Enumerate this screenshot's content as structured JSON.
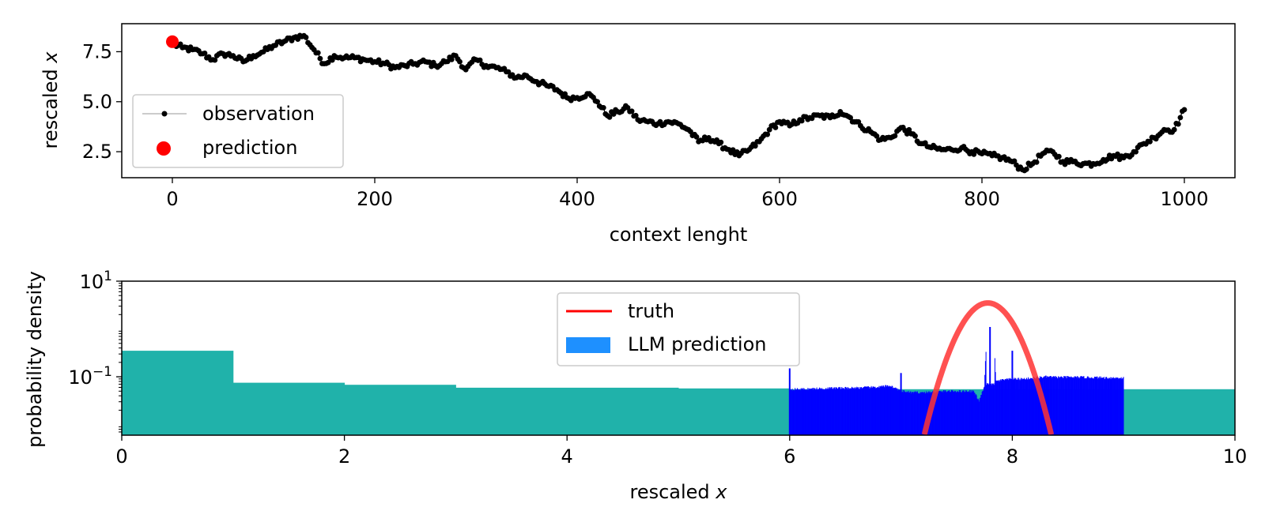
{
  "chart_data": [
    {
      "type": "line",
      "xlabel": "context lenght",
      "ylabel_main": "rescaled ",
      "ylabel_var": "x",
      "xlim": [
        -50,
        1050
      ],
      "ylim": [
        1.2,
        8.9
      ],
      "xticks": [
        0,
        200,
        400,
        600,
        800,
        1000
      ],
      "yticks": [
        2.5,
        5.0,
        7.5
      ],
      "xtick_labels": [
        "0",
        "200",
        "400",
        "600",
        "800",
        "1000"
      ],
      "ytick_labels": [
        "2.5",
        "5.0",
        "7.5"
      ],
      "legend_position": "lower-left",
      "legend": [
        {
          "label": "observation",
          "color": "#000000",
          "marker": "dot-line"
        },
        {
          "label": "prediction",
          "color": "#ff0000",
          "marker": "circle"
        }
      ],
      "series": [
        {
          "name": "observation",
          "color": "#000000",
          "x": [
            0,
            10,
            20,
            30,
            40,
            50,
            60,
            70,
            80,
            90,
            100,
            110,
            120,
            130,
            140,
            150,
            160,
            170,
            180,
            190,
            200,
            210,
            220,
            230,
            240,
            250,
            260,
            270,
            280,
            290,
            300,
            310,
            320,
            330,
            340,
            350,
            360,
            370,
            380,
            390,
            400,
            410,
            420,
            430,
            440,
            450,
            460,
            470,
            480,
            490,
            500,
            510,
            520,
            530,
            540,
            550,
            560,
            570,
            580,
            590,
            600,
            610,
            620,
            630,
            640,
            650,
            660,
            670,
            680,
            690,
            700,
            710,
            720,
            730,
            740,
            750,
            760,
            770,
            780,
            790,
            800,
            810,
            820,
            830,
            840,
            850,
            860,
            870,
            880,
            890,
            900,
            910,
            920,
            930,
            940,
            950,
            960,
            970,
            980,
            990,
            1000
          ],
          "y": [
            7.9,
            7.7,
            7.6,
            7.4,
            7.1,
            7.4,
            7.3,
            7.0,
            7.3,
            7.5,
            7.8,
            8.0,
            8.2,
            8.3,
            7.6,
            6.9,
            7.3,
            7.2,
            7.2,
            7.1,
            7.0,
            6.9,
            6.7,
            6.8,
            6.9,
            7.0,
            6.8,
            7.0,
            7.3,
            6.6,
            7.1,
            6.8,
            6.7,
            6.5,
            6.2,
            6.3,
            6.0,
            5.8,
            5.6,
            5.2,
            5.2,
            5.4,
            5.0,
            4.3,
            4.5,
            4.7,
            4.1,
            4.0,
            3.9,
            4.0,
            3.9,
            3.6,
            3.0,
            3.2,
            2.9,
            2.6,
            2.3,
            2.6,
            3.0,
            3.6,
            4.0,
            3.8,
            4.1,
            4.2,
            4.3,
            4.2,
            4.5,
            4.2,
            3.8,
            3.5,
            3.1,
            3.2,
            3.7,
            3.4,
            2.9,
            2.7,
            2.6,
            2.6,
            2.7,
            2.5,
            2.4,
            2.3,
            2.2,
            2.0,
            1.6,
            1.9,
            2.4,
            2.5,
            2.0,
            2.0,
            1.9,
            1.9,
            2.1,
            2.3,
            2.2,
            2.5,
            2.9,
            3.2,
            3.6,
            3.6,
            4.6
          ]
        },
        {
          "name": "prediction",
          "color": "#ff0000",
          "x": [
            0
          ],
          "y": [
            8.0
          ]
        }
      ]
    },
    {
      "type": "bar",
      "xlabel": "rescaled ",
      "xlabel_var": "x",
      "ylabel": "probability density",
      "yscale": "log",
      "xlim": [
        0,
        10
      ],
      "ylim": [
        0.006,
        10
      ],
      "xticks": [
        0,
        2,
        4,
        6,
        8,
        10
      ],
      "xtick_labels": [
        "0",
        "2",
        "4",
        "6",
        "8",
        "10"
      ],
      "yticks": [
        0.1,
        10
      ],
      "ytick_base": "10",
      "ytick_exponents": [
        "−1",
        "1"
      ],
      "legend_position": "upper-center",
      "legend": [
        {
          "label": "truth",
          "color": "#ff0000",
          "marker": "line"
        },
        {
          "label": "LLM prediction",
          "color": "#1e90ff",
          "marker": "patch"
        }
      ],
      "coarse_bins": {
        "color": "#20b2aa",
        "edges": [
          0,
          1,
          2,
          3,
          5,
          6,
          9,
          10
        ],
        "values": [
          0.35,
          0.075,
          0.068,
          0.059,
          0.057,
          0.055,
          0.055
        ]
      },
      "fine_bins": {
        "color": "#0000ff",
        "x_start": 6.0,
        "x_end": 9.0,
        "x": [
          6.0,
          6.1,
          6.2,
          6.3,
          6.4,
          6.5,
          6.6,
          6.7,
          6.8,
          6.9,
          7.0,
          7.1,
          7.2,
          7.3,
          7.4,
          7.5,
          7.6,
          7.65,
          7.7,
          7.75,
          7.8,
          7.85,
          7.9,
          8.0,
          8.1,
          8.2,
          8.3,
          8.4,
          8.5,
          8.6,
          8.7,
          8.8,
          8.9
        ],
        "values": [
          0.055,
          0.055,
          0.056,
          0.057,
          0.058,
          0.058,
          0.059,
          0.06,
          0.061,
          0.065,
          0.05,
          0.047,
          0.047,
          0.048,
          0.05,
          0.05,
          0.05,
          0.05,
          0.03,
          0.06,
          1.1,
          0.08,
          0.085,
          0.09,
          0.09,
          0.095,
          0.1,
          0.098,
          0.098,
          0.098,
          0.097,
          0.096,
          0.095
        ],
        "spikes": [
          {
            "x": 6.0,
            "value": 0.15
          },
          {
            "x": 7.0,
            "value": 0.12
          },
          {
            "x": 7.8,
            "value": 1.1
          },
          {
            "x": 8.0,
            "value": 0.35
          },
          {
            "x": 7.75,
            "value": 0.06
          }
        ]
      },
      "truth": {
        "color": "#ff3333",
        "mean": 7.78,
        "std": 0.16,
        "peak": 3.5
      }
    }
  ]
}
